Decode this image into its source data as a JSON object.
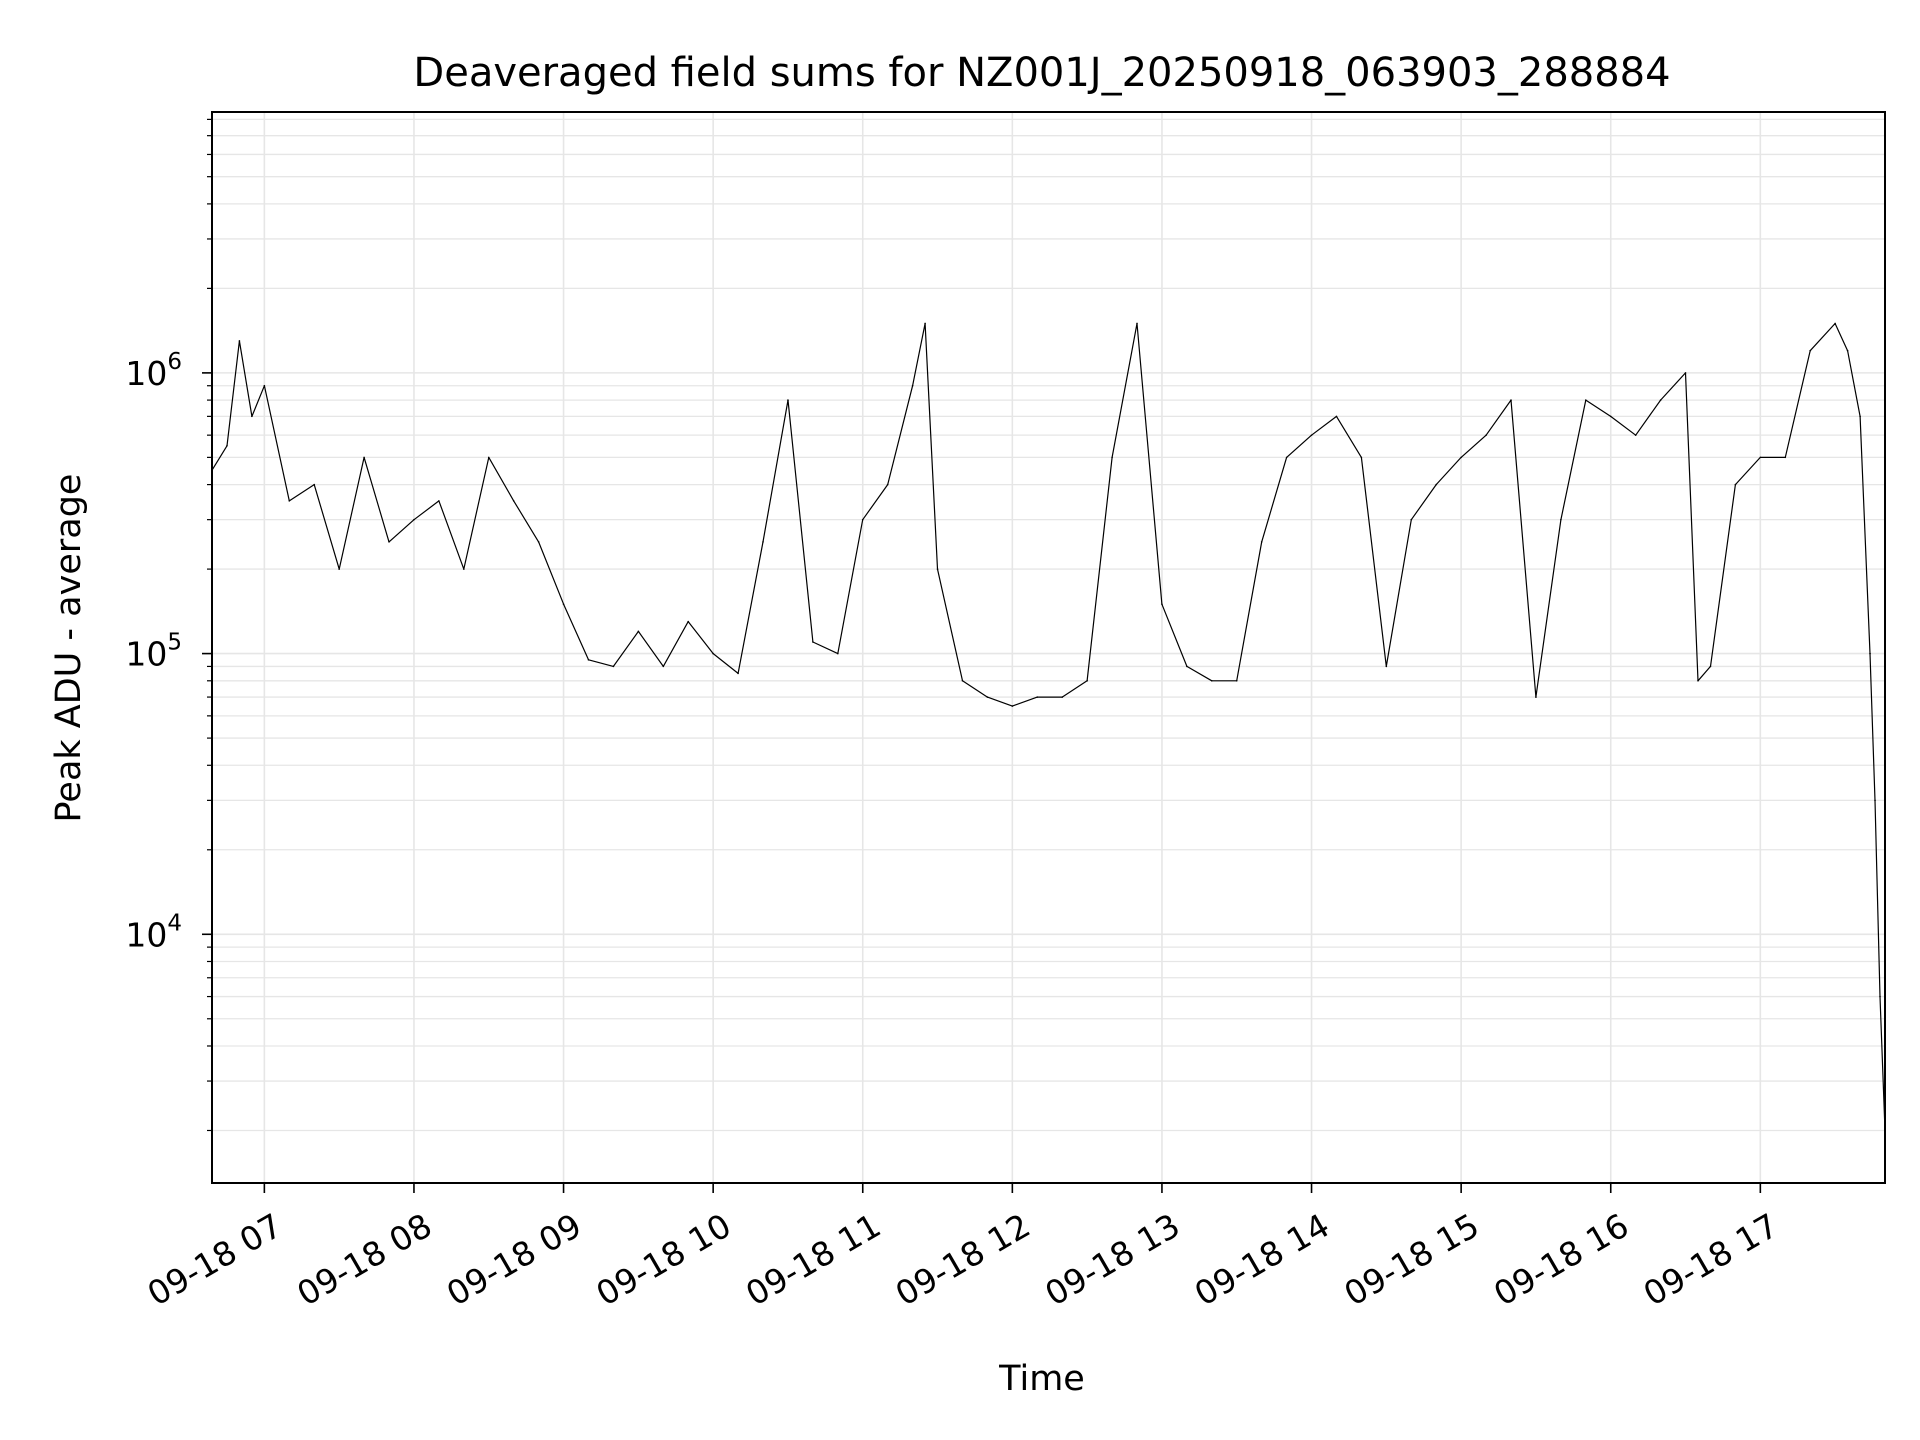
{
  "chart_data": {
    "type": "line",
    "title": "Deaveraged field sums for NZ001J_20250918_063903_288884",
    "xlabel": "Time",
    "ylabel": "Peak ADU - average",
    "yscale": "log",
    "xlim": [
      "09-18 06:39",
      "09-18 17:50"
    ],
    "ylim": [
      1300,
      8500000
    ],
    "grid": true,
    "line_color": "#000000",
    "grid_color": "#e6e6e6",
    "x_ticks": [
      "09-18 07",
      "09-18 08",
      "09-18 09",
      "09-18 10",
      "09-18 11",
      "09-18 12",
      "09-18 13",
      "09-18 14",
      "09-18 15",
      "09-18 16",
      "09-18 17"
    ],
    "y_ticks": [
      {
        "base": "10",
        "exp": "4",
        "value": 10000
      },
      {
        "base": "10",
        "exp": "5",
        "value": 100000
      },
      {
        "base": "10",
        "exp": "6",
        "value": 1000000
      }
    ],
    "series": [
      {
        "points": [
          {
            "x": "09-18 06:39",
            "y": 450000
          },
          {
            "x": "09-18 06:45",
            "y": 550000
          },
          {
            "x": "09-18 06:50",
            "y": 1300000
          },
          {
            "x": "09-18 06:55",
            "y": 700000
          },
          {
            "x": "09-18 07:00",
            "y": 900000
          },
          {
            "x": "09-18 07:10",
            "y": 350000
          },
          {
            "x": "09-18 07:20",
            "y": 400000
          },
          {
            "x": "09-18 07:30",
            "y": 200000
          },
          {
            "x": "09-18 07:40",
            "y": 500000
          },
          {
            "x": "09-18 07:50",
            "y": 250000
          },
          {
            "x": "09-18 08:00",
            "y": 300000
          },
          {
            "x": "09-18 08:10",
            "y": 350000
          },
          {
            "x": "09-18 08:20",
            "y": 200000
          },
          {
            "x": "09-18 08:30",
            "y": 500000
          },
          {
            "x": "09-18 08:40",
            "y": 350000
          },
          {
            "x": "09-18 08:50",
            "y": 250000
          },
          {
            "x": "09-18 09:00",
            "y": 150000
          },
          {
            "x": "09-18 09:10",
            "y": 95000
          },
          {
            "x": "09-18 09:20",
            "y": 90000
          },
          {
            "x": "09-18 09:30",
            "y": 120000
          },
          {
            "x": "09-18 09:40",
            "y": 90000
          },
          {
            "x": "09-18 09:50",
            "y": 130000
          },
          {
            "x": "09-18 10:00",
            "y": 100000
          },
          {
            "x": "09-18 10:10",
            "y": 85000
          },
          {
            "x": "09-18 10:20",
            "y": 250000
          },
          {
            "x": "09-18 10:30",
            "y": 800000
          },
          {
            "x": "09-18 10:40",
            "y": 110000
          },
          {
            "x": "09-18 10:50",
            "y": 100000
          },
          {
            "x": "09-18 11:00",
            "y": 300000
          },
          {
            "x": "09-18 11:10",
            "y": 400000
          },
          {
            "x": "09-18 11:20",
            "y": 900000
          },
          {
            "x": "09-18 11:25",
            "y": 1500000
          },
          {
            "x": "09-18 11:30",
            "y": 200000
          },
          {
            "x": "09-18 11:40",
            "y": 80000
          },
          {
            "x": "09-18 11:50",
            "y": 70000
          },
          {
            "x": "09-18 12:00",
            "y": 65000
          },
          {
            "x": "09-18 12:10",
            "y": 70000
          },
          {
            "x": "09-18 12:20",
            "y": 70000
          },
          {
            "x": "09-18 12:30",
            "y": 80000
          },
          {
            "x": "09-18 12:40",
            "y": 500000
          },
          {
            "x": "09-18 12:50",
            "y": 1500000
          },
          {
            "x": "09-18 13:00",
            "y": 150000
          },
          {
            "x": "09-18 13:10",
            "y": 90000
          },
          {
            "x": "09-18 13:20",
            "y": 80000
          },
          {
            "x": "09-18 13:30",
            "y": 80000
          },
          {
            "x": "09-18 13:40",
            "y": 250000
          },
          {
            "x": "09-18 13:50",
            "y": 500000
          },
          {
            "x": "09-18 14:00",
            "y": 600000
          },
          {
            "x": "09-18 14:10",
            "y": 700000
          },
          {
            "x": "09-18 14:20",
            "y": 500000
          },
          {
            "x": "09-18 14:30",
            "y": 90000
          },
          {
            "x": "09-18 14:40",
            "y": 300000
          },
          {
            "x": "09-18 14:50",
            "y": 400000
          },
          {
            "x": "09-18 15:00",
            "y": 500000
          },
          {
            "x": "09-18 15:10",
            "y": 600000
          },
          {
            "x": "09-18 15:20",
            "y": 800000
          },
          {
            "x": "09-18 15:30",
            "y": 70000
          },
          {
            "x": "09-18 15:40",
            "y": 300000
          },
          {
            "x": "09-18 15:50",
            "y": 800000
          },
          {
            "x": "09-18 16:00",
            "y": 700000
          },
          {
            "x": "09-18 16:10",
            "y": 600000
          },
          {
            "x": "09-18 16:20",
            "y": 800000
          },
          {
            "x": "09-18 16:30",
            "y": 1000000
          },
          {
            "x": "09-18 16:35",
            "y": 80000
          },
          {
            "x": "09-18 16:40",
            "y": 90000
          },
          {
            "x": "09-18 16:50",
            "y": 400000
          },
          {
            "x": "09-18 17:00",
            "y": 500000
          },
          {
            "x": "09-18 17:10",
            "y": 500000
          },
          {
            "x": "09-18 17:20",
            "y": 1200000
          },
          {
            "x": "09-18 17:30",
            "y": 1500000
          },
          {
            "x": "09-18 17:35",
            "y": 1200000
          },
          {
            "x": "09-18 17:40",
            "y": 700000
          },
          {
            "x": "09-18 17:44",
            "y": 100000
          },
          {
            "x": "09-18 17:46",
            "y": 30000
          },
          {
            "x": "09-18 17:48",
            "y": 6000
          },
          {
            "x": "09-18 17:50",
            "y": 2000
          }
        ]
      }
    ]
  }
}
